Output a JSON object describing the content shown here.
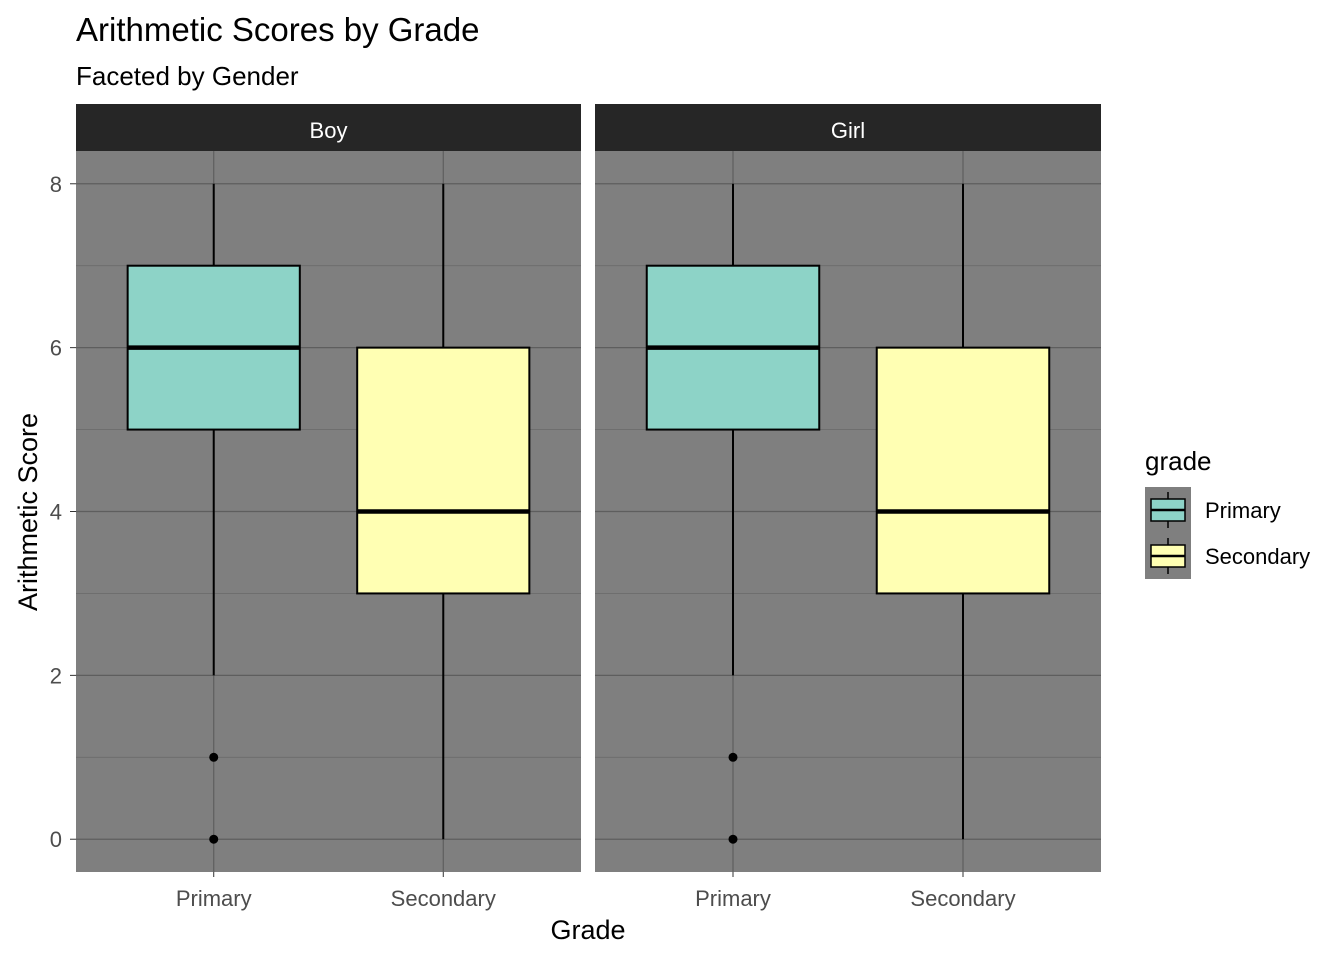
{
  "chart_data": {
    "type": "boxplot",
    "title": "Arithmetic Scores by Grade",
    "subtitle": "Faceted by Gender",
    "xlabel": "Grade",
    "ylabel": "Arithmetic Score",
    "ylim": [
      -0.4,
      8.4
    ],
    "y_ticks": [
      0,
      2,
      4,
      6,
      8
    ],
    "categories": [
      "Primary",
      "Secondary"
    ],
    "grid": true,
    "legend": {
      "title": "grade",
      "position": "right",
      "entries": [
        {
          "label": "Primary",
          "color": "#8dd3c7"
        },
        {
          "label": "Secondary",
          "color": "#ffffb3"
        }
      ]
    },
    "facets": [
      {
        "label": "Boy",
        "boxes": [
          {
            "category": "Primary",
            "whisker_low": 2,
            "q1": 5,
            "median": 6,
            "q3": 7,
            "whisker_high": 8,
            "outliers": [
              1,
              0
            ]
          },
          {
            "category": "Secondary",
            "whisker_low": 0,
            "q1": 3,
            "median": 4,
            "q3": 6,
            "whisker_high": 8,
            "outliers": []
          }
        ]
      },
      {
        "label": "Girl",
        "boxes": [
          {
            "category": "Primary",
            "whisker_low": 2,
            "q1": 5,
            "median": 6,
            "q3": 7,
            "whisker_high": 8,
            "outliers": [
              1,
              0
            ]
          },
          {
            "category": "Secondary",
            "whisker_low": 0,
            "q1": 3,
            "median": 4,
            "q3": 6,
            "whisker_high": 8,
            "outliers": []
          }
        ]
      }
    ],
    "colors": {
      "panel_bg": "#7f7f7f",
      "strip_bg": "#262626",
      "strip_text": "#ffffff",
      "grid_major": "#5e5e5e",
      "grid_minor": "#6b6b6b"
    }
  }
}
